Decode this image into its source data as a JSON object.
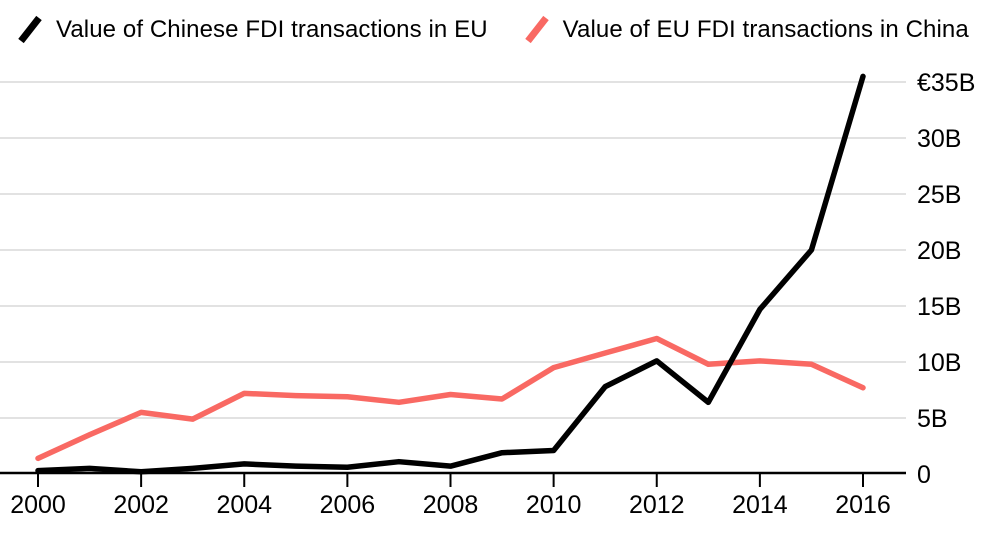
{
  "legend": {
    "items": [
      {
        "label": "Value of Chinese FDI transactions in EU",
        "color": "#000000"
      },
      {
        "label": "Value of EU FDI transactions in China",
        "color": "#f96963"
      }
    ]
  },
  "chart_data": {
    "type": "line",
    "x": [
      2000,
      2001,
      2002,
      2003,
      2004,
      2005,
      2006,
      2007,
      2008,
      2009,
      2010,
      2011,
      2012,
      2013,
      2014,
      2015,
      2016
    ],
    "series": [
      {
        "name": "Value of Chinese FDI transactions in EU",
        "color": "#000000",
        "values": [
          0.3,
          0.5,
          0.2,
          0.5,
          0.9,
          0.7,
          0.6,
          1.1,
          0.7,
          1.9,
          2.1,
          7.8,
          10.1,
          6.4,
          14.7,
          20.0,
          35.5
        ]
      },
      {
        "name": "Value of EU FDI transactions in China",
        "color": "#f96963",
        "values": [
          1.4,
          3.5,
          5.5,
          4.9,
          7.2,
          7.0,
          6.9,
          6.4,
          7.1,
          6.7,
          9.5,
          10.8,
          12.1,
          9.8,
          10.1,
          9.8,
          7.7
        ]
      }
    ],
    "title": "",
    "xlabel": "",
    "ylabel": "",
    "ylim": [
      0,
      35
    ],
    "xlim": [
      2000,
      2016
    ],
    "grid": true,
    "legend_position": "top",
    "y_ticks": [
      {
        "value": 0,
        "label": "0"
      },
      {
        "value": 5,
        "label": "5B"
      },
      {
        "value": 10,
        "label": "10B"
      },
      {
        "value": 15,
        "label": "15B"
      },
      {
        "value": 20,
        "label": "20B"
      },
      {
        "value": 25,
        "label": "25B"
      },
      {
        "value": 30,
        "label": "30B"
      },
      {
        "value": 35,
        "label": "€35B"
      }
    ],
    "x_ticks": [
      {
        "value": 2000,
        "label": "2000"
      },
      {
        "value": 2002,
        "label": "2002"
      },
      {
        "value": 2004,
        "label": "2004"
      },
      {
        "value": 2006,
        "label": "2006"
      },
      {
        "value": 2008,
        "label": "2008"
      },
      {
        "value": 2010,
        "label": "2010"
      },
      {
        "value": 2012,
        "label": "2012"
      },
      {
        "value": 2014,
        "label": "2014"
      },
      {
        "value": 2016,
        "label": "2016"
      }
    ],
    "colors": {
      "grid": "#e2e2e2",
      "axis": "#000000",
      "text": "#000000",
      "background": "#ffffff"
    }
  }
}
